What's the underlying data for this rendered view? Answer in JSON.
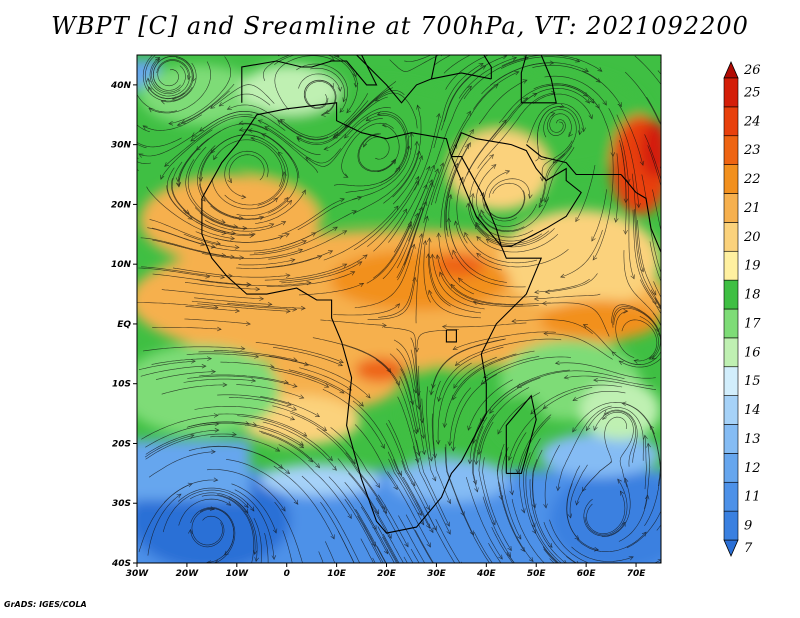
{
  "title": "WBPT [C] and Sreamline at 700hPa, VT: 2021092200",
  "credit": "GrADS: IGES/COLA",
  "map": {
    "lon_range": [
      -30,
      75
    ],
    "lat_range": [
      -40,
      45
    ],
    "lon_ticks": [
      {
        "value": -30,
        "label": "30W"
      },
      {
        "value": -20,
        "label": "20W"
      },
      {
        "value": -10,
        "label": "10W"
      },
      {
        "value": 0,
        "label": "0"
      },
      {
        "value": 10,
        "label": "10E"
      },
      {
        "value": 20,
        "label": "20E"
      },
      {
        "value": 30,
        "label": "30E"
      },
      {
        "value": 40,
        "label": "40E"
      },
      {
        "value": 50,
        "label": "50E"
      },
      {
        "value": 60,
        "label": "60E"
      },
      {
        "value": 70,
        "label": "70E"
      }
    ],
    "lat_ticks": [
      {
        "value": 40,
        "label": "40N"
      },
      {
        "value": 30,
        "label": "30N"
      },
      {
        "value": 20,
        "label": "20N"
      },
      {
        "value": 10,
        "label": "10N"
      },
      {
        "value": 0,
        "label": "EQ"
      },
      {
        "value": -10,
        "label": "10S"
      },
      {
        "value": -20,
        "label": "20S"
      },
      {
        "value": -30,
        "label": "30S"
      },
      {
        "value": -40,
        "label": "40S"
      }
    ]
  },
  "colorbar": {
    "levels": [
      {
        "label": "7",
        "color": "#2a6fd6"
      },
      {
        "label": "9",
        "color": "#3a80e0"
      },
      {
        "label": "11",
        "color": "#4d91e8"
      },
      {
        "label": "12",
        "color": "#66a6ee"
      },
      {
        "label": "13",
        "color": "#85bcf4"
      },
      {
        "label": "14",
        "color": "#a6d2f8"
      },
      {
        "label": "15",
        "color": "#d2eefc"
      },
      {
        "label": "16",
        "color": "#bff0b2"
      },
      {
        "label": "17",
        "color": "#7edc77"
      },
      {
        "label": "18",
        "color": "#3fbf43"
      },
      {
        "label": "19",
        "color": "#fff0a0"
      },
      {
        "label": "20",
        "color": "#fbd27c"
      },
      {
        "label": "21",
        "color": "#f6b04e"
      },
      {
        "label": "22",
        "color": "#f2901e"
      },
      {
        "label": "23",
        "color": "#ee6412"
      },
      {
        "label": "24",
        "color": "#e8400c"
      },
      {
        "label": "25",
        "color": "#d41e08"
      },
      {
        "label": "26",
        "color": "#b00b04"
      }
    ]
  }
}
